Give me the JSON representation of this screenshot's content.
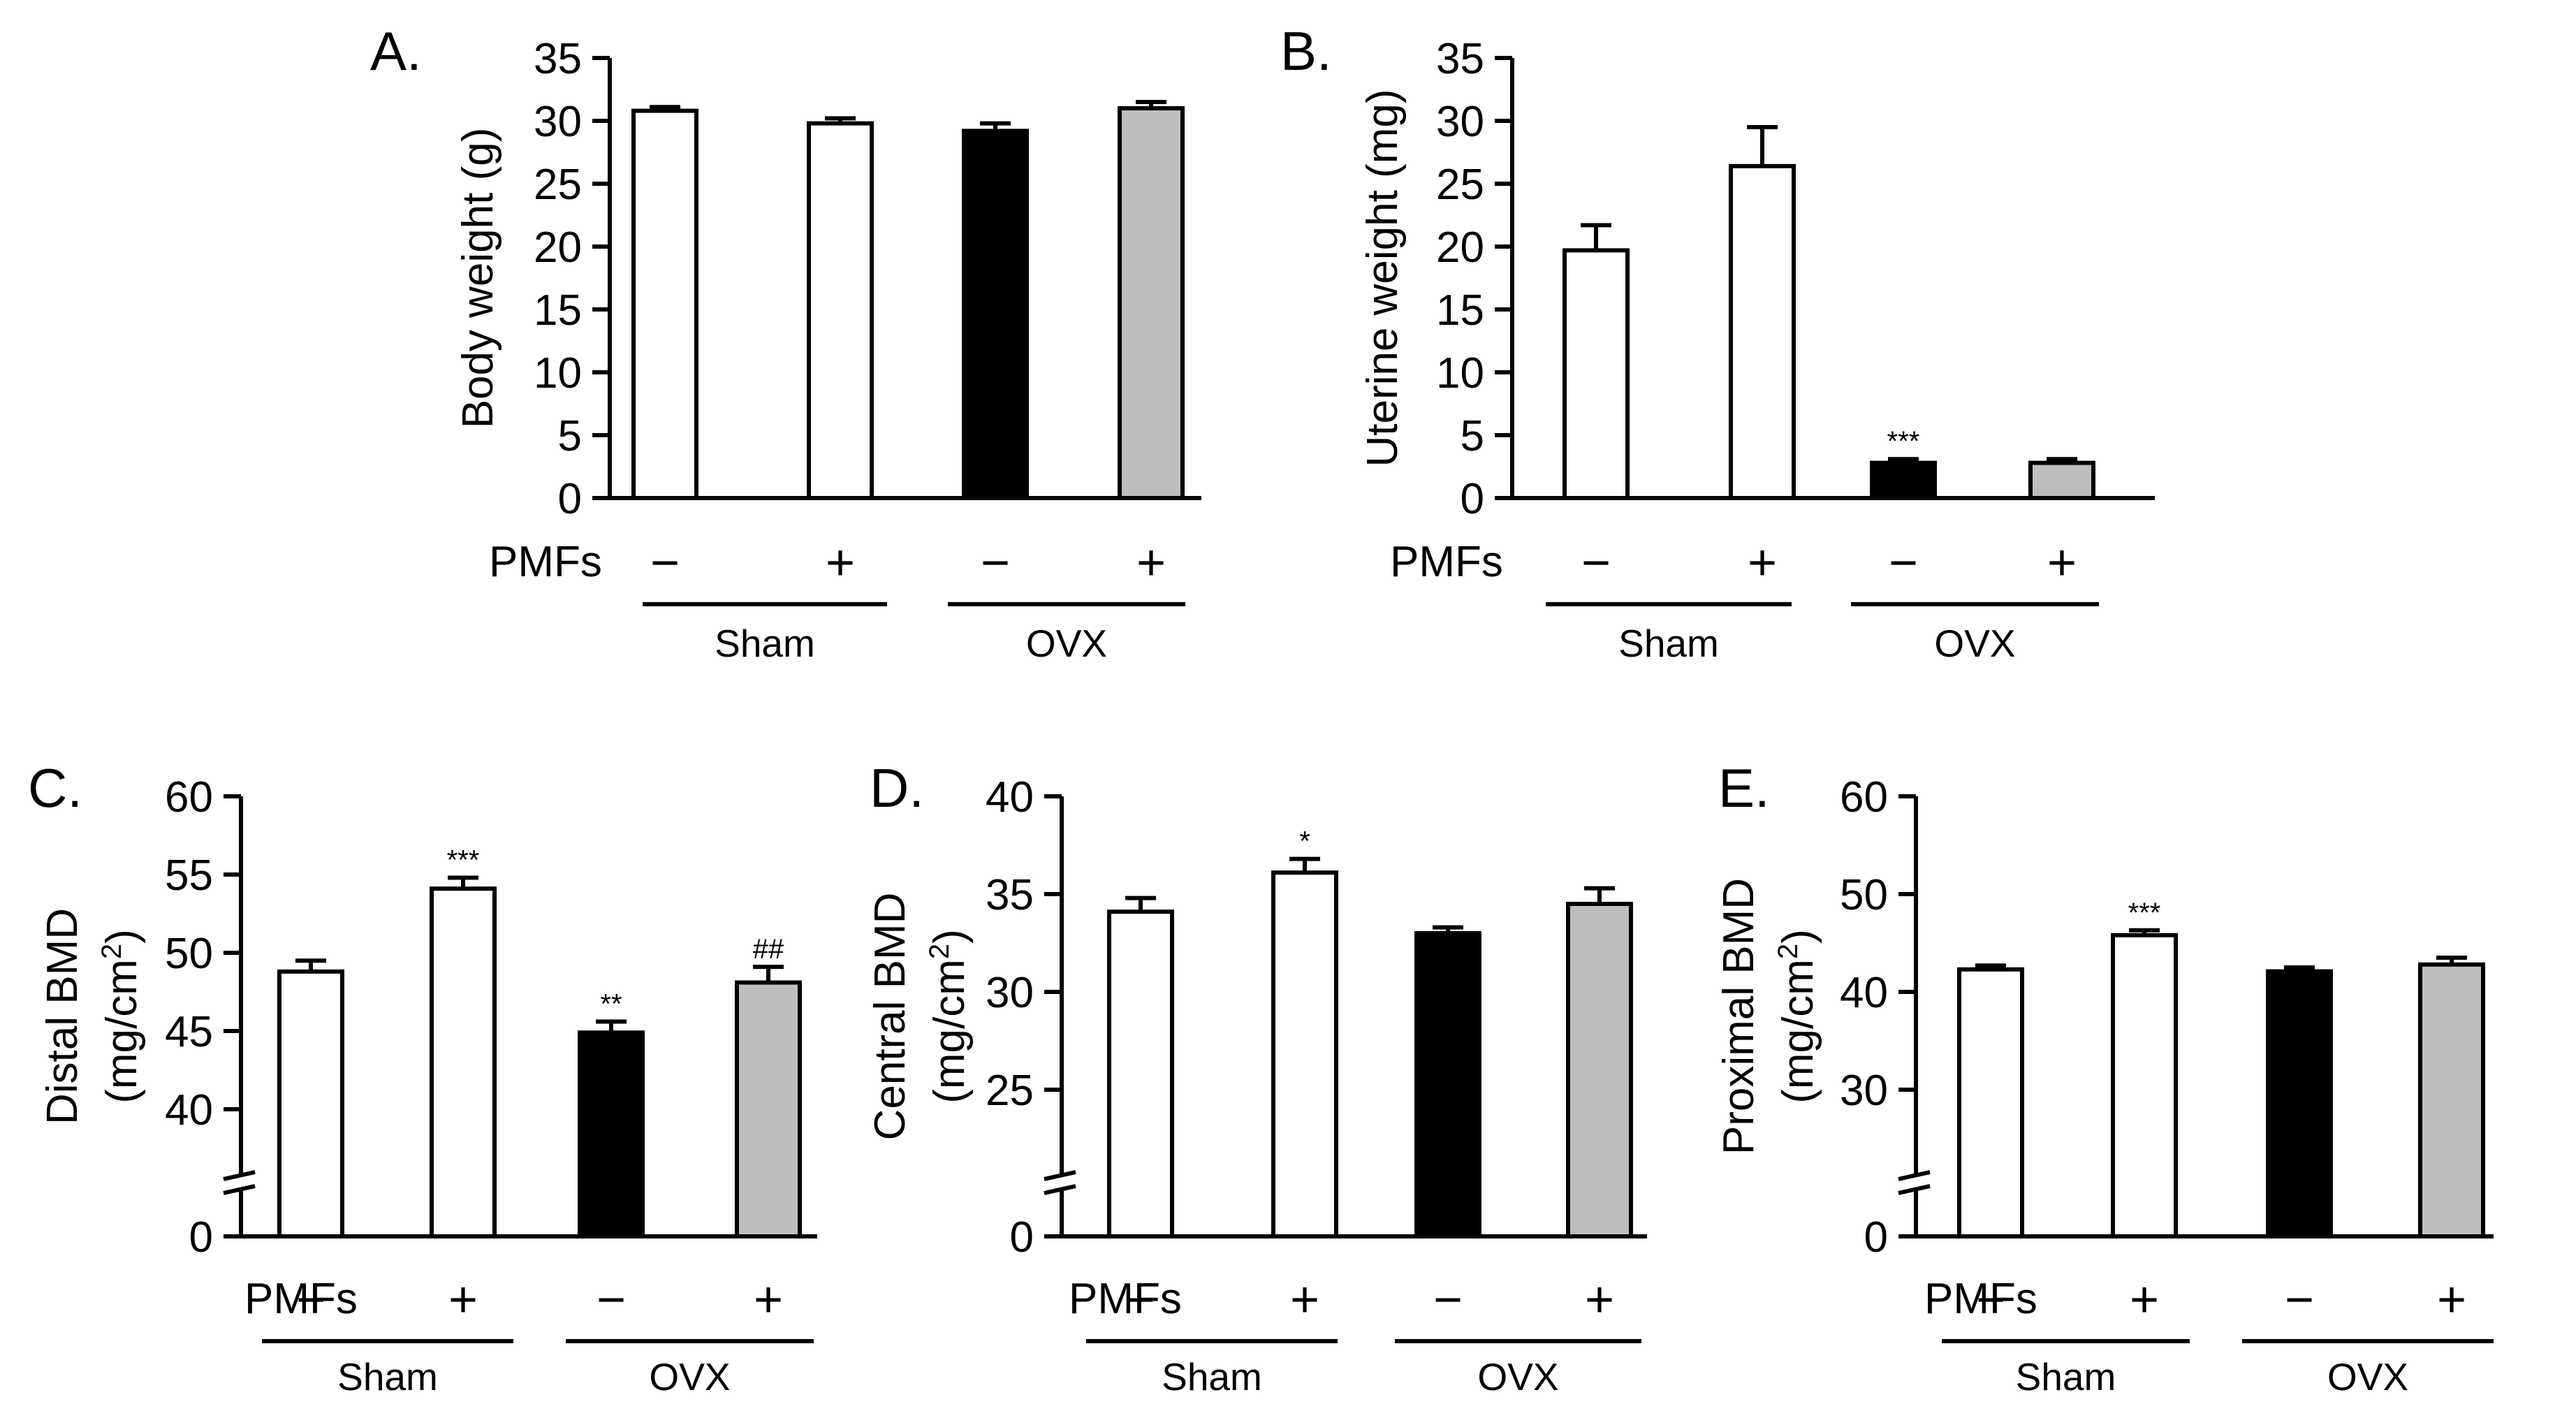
{
  "figure": {
    "colors": {
      "sham": "#ffffff",
      "ovx_control": "#000000",
      "ovx_pmfs": "#bebebe",
      "stroke": "#000000"
    },
    "x_label": "PMFs",
    "treatment_signs": [
      "−",
      "+",
      "−",
      "+"
    ],
    "groups": [
      "Sham",
      "OVX"
    ]
  },
  "chart_data": [
    {
      "panel": "A.",
      "type": "bar",
      "ylabel": "Body weight (g)",
      "ylim": [
        0,
        35
      ],
      "yticks": [
        0,
        5,
        10,
        15,
        20,
        25,
        30,
        35
      ],
      "broken_axis": false,
      "categories": [
        "Sham −",
        "Sham +",
        "OVX −",
        "OVX +"
      ],
      "values": [
        30.8,
        29.8,
        29.2,
        31.0
      ],
      "errors": [
        0.3,
        0.4,
        0.6,
        0.5
      ],
      "significance": [
        "",
        "",
        "",
        ""
      ]
    },
    {
      "panel": "B.",
      "type": "bar",
      "ylabel": "Uterine weight (mg)",
      "ylim": [
        0,
        35
      ],
      "yticks": [
        0,
        5,
        10,
        15,
        20,
        25,
        30,
        35
      ],
      "broken_axis": false,
      "categories": [
        "Sham −",
        "Sham +",
        "OVX −",
        "OVX +"
      ],
      "values": [
        19.7,
        26.4,
        2.8,
        2.8
      ],
      "errors": [
        2.0,
        3.1,
        0.3,
        0.3
      ],
      "significance": [
        "",
        "",
        "***",
        ""
      ]
    },
    {
      "panel": "C.",
      "type": "bar",
      "ylabel": "Distal BMD",
      "yunit": "(mg/cm",
      "yunit_sup": "2",
      "yunit_end": ")",
      "ylim": [
        35,
        60
      ],
      "yticks": [
        40,
        45,
        50,
        55,
        60
      ],
      "broken_axis": true,
      "break_label": "0",
      "categories": [
        "Sham −",
        "Sham +",
        "OVX −",
        "OVX +"
      ],
      "values": [
        48.8,
        54.1,
        44.9,
        48.1
      ],
      "errors": [
        0.7,
        0.7,
        0.7,
        1.0
      ],
      "significance": [
        "",
        "***",
        "**",
        "##"
      ]
    },
    {
      "panel": "D.",
      "type": "bar",
      "ylabel": "Central BMD",
      "yunit": "(mg/cm",
      "yunit_sup": "2",
      "yunit_end": ")",
      "ylim": [
        20,
        40
      ],
      "yticks": [
        25,
        30,
        35,
        40
      ],
      "broken_axis": true,
      "break_label": "0",
      "categories": [
        "Sham −",
        "Sham +",
        "OVX −",
        "OVX +"
      ],
      "values": [
        34.1,
        36.1,
        33.0,
        34.5
      ],
      "errors": [
        0.7,
        0.7,
        0.3,
        0.8
      ],
      "significance": [
        "",
        "*",
        "",
        ""
      ]
    },
    {
      "panel": "E.",
      "type": "bar",
      "ylabel": "Proximal BMD",
      "yunit": "(mg/cm",
      "yunit_sup": "2",
      "yunit_end": ")",
      "ylim": [
        20,
        60
      ],
      "yticks": [
        30,
        40,
        50,
        60
      ],
      "broken_axis": true,
      "break_label": "0",
      "categories": [
        "Sham −",
        "Sham +",
        "OVX −",
        "OVX +"
      ],
      "values": [
        42.3,
        45.8,
        42.1,
        42.8
      ],
      "errors": [
        0.4,
        0.5,
        0.4,
        0.7
      ],
      "significance": [
        "",
        "***",
        "",
        ""
      ]
    }
  ]
}
